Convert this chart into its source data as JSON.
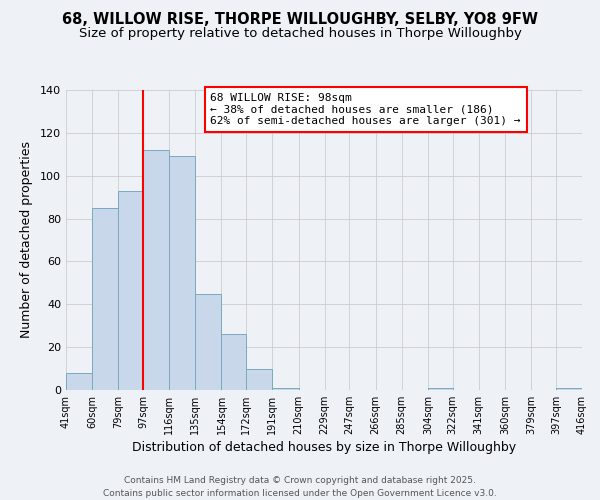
{
  "title": "68, WILLOW RISE, THORPE WILLOUGHBY, SELBY, YO8 9FW",
  "subtitle": "Size of property relative to detached houses in Thorpe Willoughby",
  "xlabel": "Distribution of detached houses by size in Thorpe Willoughby",
  "ylabel": "Number of detached properties",
  "bin_edges": [
    41,
    60,
    79,
    97,
    116,
    135,
    154,
    172,
    191,
    210,
    229,
    247,
    266,
    285,
    304,
    322,
    341,
    360,
    379,
    397,
    416
  ],
  "bin_counts": [
    8,
    85,
    93,
    112,
    109,
    45,
    26,
    10,
    1,
    0,
    0,
    0,
    0,
    0,
    1,
    0,
    0,
    0,
    0,
    1
  ],
  "bar_facecolor": "#c8d8ea",
  "bar_edgecolor": "#7aaabf",
  "reference_line_x": 97,
  "reference_line_color": "red",
  "annotation_title": "68 WILLOW RISE: 98sqm",
  "annotation_line1": "← 38% of detached houses are smaller (186)",
  "annotation_line2": "62% of semi-detached houses are larger (301) →",
  "annotation_box_edgecolor": "red",
  "annotation_box_facecolor": "white",
  "ylim": [
    0,
    140
  ],
  "yticks": [
    0,
    20,
    40,
    60,
    80,
    100,
    120,
    140
  ],
  "tick_labels": [
    "41sqm",
    "60sqm",
    "79sqm",
    "97sqm",
    "116sqm",
    "135sqm",
    "154sqm",
    "172sqm",
    "191sqm",
    "210sqm",
    "229sqm",
    "247sqm",
    "266sqm",
    "285sqm",
    "304sqm",
    "322sqm",
    "341sqm",
    "360sqm",
    "379sqm",
    "397sqm",
    "416sqm"
  ],
  "footer_line1": "Contains HM Land Registry data © Crown copyright and database right 2025.",
  "footer_line2": "Contains public sector information licensed under the Open Government Licence v3.0.",
  "background_color": "#eef2f7",
  "grid_color": "#cccccc",
  "title_fontsize": 10.5,
  "subtitle_fontsize": 9.5,
  "xlabel_fontsize": 9,
  "ylabel_fontsize": 9,
  "annotation_fontsize": 8,
  "footer_fontsize": 6.5,
  "tick_fontsize": 7
}
